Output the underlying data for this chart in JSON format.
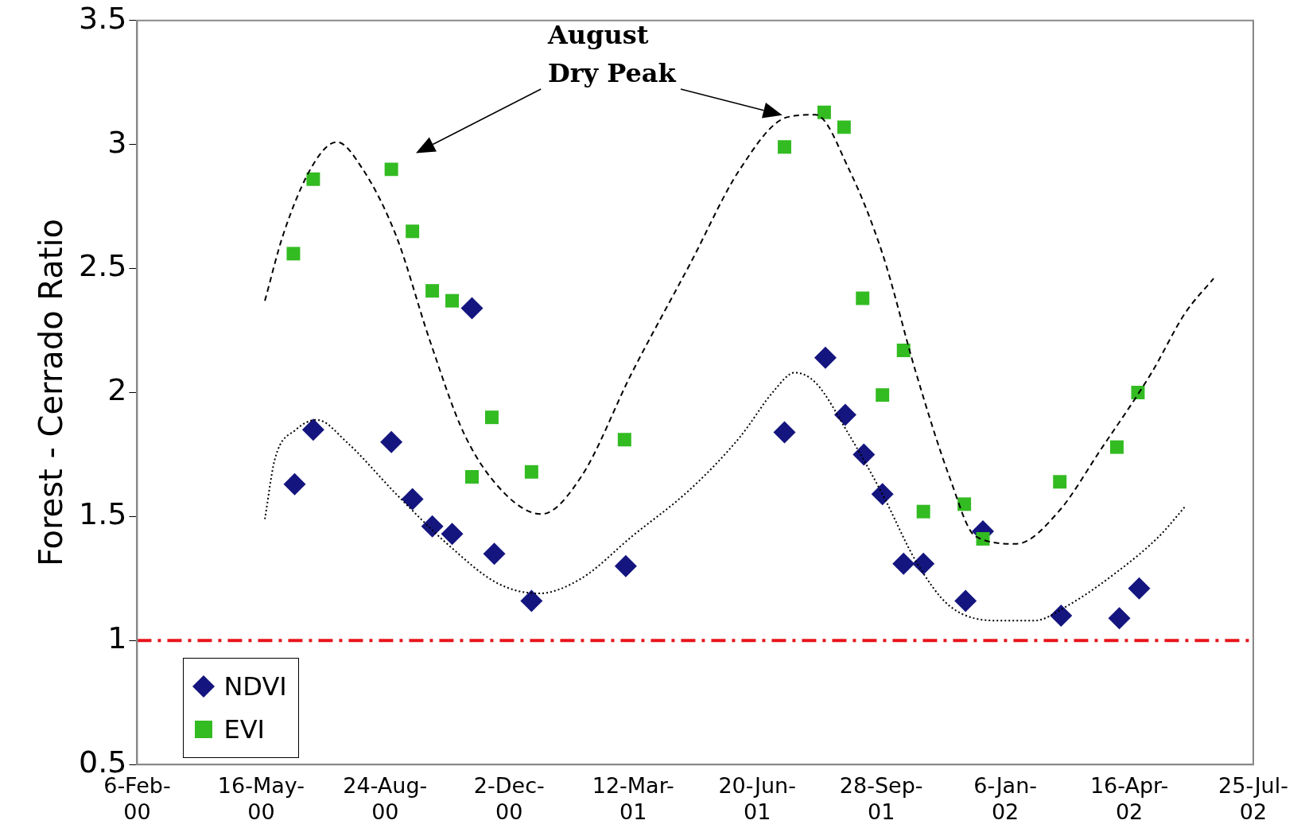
{
  "chart_data": {
    "type": "scatter",
    "ylabel": "Forest - Cerrado Ratio",
    "xlim": [
      "2000-02-06",
      "2002-07-25"
    ],
    "xticks": [
      {
        "value": "2000-02-06",
        "label": "6-Feb-00"
      },
      {
        "value": "2000-05-16",
        "label": "16-May-00"
      },
      {
        "value": "2000-08-24",
        "label": "24-Aug-00"
      },
      {
        "value": "2000-12-02",
        "label": "2-Dec-00"
      },
      {
        "value": "2001-03-12",
        "label": "12-Mar-01"
      },
      {
        "value": "2001-06-20",
        "label": "20-Jun-01"
      },
      {
        "value": "2001-09-28",
        "label": "28-Sep-01"
      },
      {
        "value": "2002-01-06",
        "label": "6-Jan-02"
      },
      {
        "value": "2002-04-16",
        "label": "16-Apr-02"
      },
      {
        "value": "2002-07-25",
        "label": "25-Jul-02"
      }
    ],
    "ylim": [
      0.5,
      3.5
    ],
    "yticks": [
      0.5,
      1,
      1.5,
      2,
      2.5,
      3,
      3.5
    ],
    "grid": false,
    "legend": "bottom left",
    "annotations": [
      "August Dry Peak"
    ],
    "ref_lines": [
      {
        "axis": "y",
        "value": 1,
        "color": "#e8141c",
        "line_style": "dashdot"
      }
    ],
    "series": [
      {
        "name": "NDVI",
        "marker": "diamond",
        "color": "#15157f",
        "x": [
          "2000-06-12",
          "2000-06-27",
          "2000-08-29",
          "2000-09-15",
          "2000-10-01",
          "2000-10-17",
          "2000-11-02",
          "2000-11-20",
          "2000-12-20",
          "2001-03-06",
          "2001-07-12",
          "2001-08-14",
          "2001-08-30",
          "2001-09-14",
          "2001-09-29",
          "2001-10-16",
          "2001-11-01",
          "2001-12-05",
          "2001-12-19",
          "2002-02-20",
          "2002-04-08",
          "2002-04-24"
        ],
        "values": [
          1.63,
          1.85,
          1.8,
          1.57,
          1.46,
          1.43,
          2.34,
          1.35,
          1.16,
          1.3,
          1.84,
          2.14,
          1.91,
          1.75,
          1.59,
          1.31,
          1.31,
          1.16,
          1.44,
          1.1,
          1.09,
          1.21
        ]
      },
      {
        "name": "EVI",
        "marker": "square",
        "color": "#33bb22",
        "x": [
          "2000-06-11",
          "2000-06-27",
          "2000-08-29",
          "2000-09-15",
          "2000-10-01",
          "2000-10-17",
          "2000-11-02",
          "2000-11-18",
          "2000-12-20",
          "2001-03-05",
          "2001-07-12",
          "2001-08-13",
          "2001-08-29",
          "2001-09-13",
          "2001-09-29",
          "2001-10-16",
          "2001-11-01",
          "2001-12-04",
          "2001-12-19",
          "2002-02-19",
          "2002-04-06",
          "2002-04-23"
        ],
        "values": [
          2.56,
          2.86,
          2.9,
          2.65,
          2.41,
          2.37,
          1.66,
          1.9,
          1.68,
          1.81,
          2.99,
          3.13,
          3.07,
          2.38,
          1.99,
          2.17,
          1.52,
          1.55,
          1.41,
          1.64,
          1.78,
          2.0
        ]
      },
      {
        "type": "line",
        "marker": "none",
        "line_style": "dashed",
        "color": "#000000",
        "x": [
          "2000-05-19",
          "2000-06-03",
          "2000-06-27",
          "2000-07-16",
          "2000-08-06",
          "2000-09-02",
          "2000-09-29",
          "2000-10-27",
          "2000-11-29",
          "2000-12-28",
          "2001-01-29",
          "2001-03-11",
          "2001-04-27",
          "2001-06-06",
          "2001-07-14",
          "2001-08-06",
          "2001-09-02",
          "2001-09-29",
          "2001-10-26",
          "2001-11-22",
          "2001-12-13",
          "2002-01-15",
          "2002-02-18",
          "2002-03-24",
          "2002-05-04",
          "2002-05-31",
          "2002-06-23"
        ],
        "values": [
          2.37,
          2.64,
          2.92,
          3.01,
          2.9,
          2.63,
          2.21,
          1.83,
          1.59,
          1.51,
          1.66,
          2.08,
          2.52,
          2.9,
          3.11,
          3.12,
          2.9,
          2.56,
          2.08,
          1.66,
          1.42,
          1.39,
          1.52,
          1.77,
          2.08,
          2.32,
          2.46
        ]
      },
      {
        "type": "line",
        "marker": "none",
        "line_style": "dotted",
        "color": "#000000",
        "x": [
          "2000-05-19",
          "2000-05-27",
          "2000-06-13",
          "2000-06-30",
          "2000-07-24",
          "2000-09-02",
          "2000-10-13",
          "2000-11-23",
          "2000-12-26",
          "2001-01-29",
          "2001-03-11",
          "2001-04-27",
          "2001-06-06",
          "2001-07-04",
          "2001-07-20",
          "2001-08-06",
          "2001-09-02",
          "2001-09-29",
          "2001-10-26",
          "2001-11-22",
          "2002-01-02",
          "2002-01-29",
          "2002-02-25",
          "2002-04-07",
          "2002-05-10",
          "2002-05-31"
        ],
        "values": [
          1.49,
          1.73,
          1.85,
          1.89,
          1.8,
          1.59,
          1.39,
          1.23,
          1.19,
          1.25,
          1.42,
          1.61,
          1.82,
          2.01,
          2.08,
          2.04,
          1.83,
          1.59,
          1.32,
          1.14,
          1.08,
          1.08,
          1.14,
          1.28,
          1.42,
          1.54
        ]
      }
    ]
  }
}
